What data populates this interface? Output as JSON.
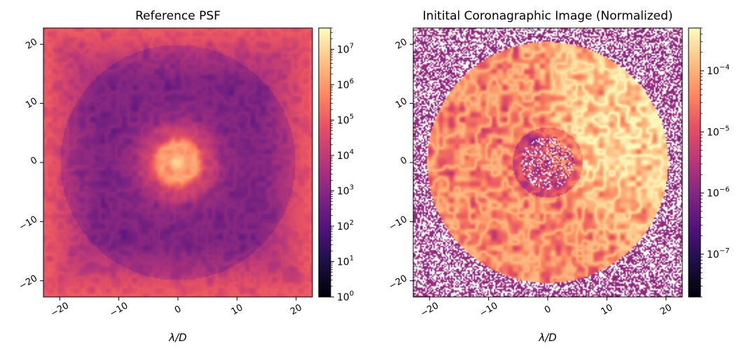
{
  "chart_data": [
    {
      "type": "heatmap",
      "title": "Reference PSF",
      "xlabel": "λ/D",
      "ylabel": "",
      "xlim": [
        -22.75,
        22.75
      ],
      "ylim": [
        -22.75,
        22.75
      ],
      "x_ticks": [
        -20,
        -10,
        0,
        10,
        20
      ],
      "y_ticks": [
        -20,
        -10,
        0,
        10,
        20
      ],
      "x_tick_labels": [
        "−20",
        "−10",
        "0",
        "10",
        "20"
      ],
      "y_tick_labels": [
        "−20",
        "−10",
        "0",
        "10",
        "20"
      ],
      "colormap": "magma",
      "colorbar": {
        "scale": "log",
        "range": [
          1,
          40000000
        ],
        "ticks": [
          {
            "base": "10",
            "exp": "0",
            "value": 1
          },
          {
            "base": "10",
            "exp": "1",
            "value": 10
          },
          {
            "base": "10",
            "exp": "2",
            "value": 100
          },
          {
            "base": "10",
            "exp": "3",
            "value": 1000
          },
          {
            "base": "10",
            "exp": "4",
            "value": 10000
          },
          {
            "base": "10",
            "exp": "5",
            "value": 100000
          },
          {
            "base": "10",
            "exp": "6",
            "value": 1000000
          },
          {
            "base": "10",
            "exp": "7",
            "value": 10000000
          }
        ]
      }
    },
    {
      "type": "heatmap",
      "title": "Initital Coronagraphic Image (Normalized)",
      "xlabel": "λ/D",
      "ylabel": "",
      "xlim": [
        -22.75,
        22.75
      ],
      "ylim": [
        -22.75,
        22.75
      ],
      "x_ticks": [
        -20,
        -10,
        0,
        10,
        20
      ],
      "y_ticks": [
        -20,
        -10,
        0,
        10,
        20
      ],
      "x_tick_labels": [
        "−20",
        "−10",
        "0",
        "10",
        "20"
      ],
      "y_tick_labels": [
        "−20",
        "−10",
        "0",
        "10",
        "20"
      ],
      "colormap": "magma",
      "colorbar": {
        "scale": "log",
        "range": [
          2e-08,
          0.0005
        ],
        "ticks": [
          {
            "base": "10",
            "exp": "−7",
            "value": 1e-07
          },
          {
            "base": "10",
            "exp": "−6",
            "value": 1e-06
          },
          {
            "base": "10",
            "exp": "−5",
            "value": 1e-05
          },
          {
            "base": "10",
            "exp": "−4",
            "value": 0.0001
          }
        ]
      }
    }
  ]
}
